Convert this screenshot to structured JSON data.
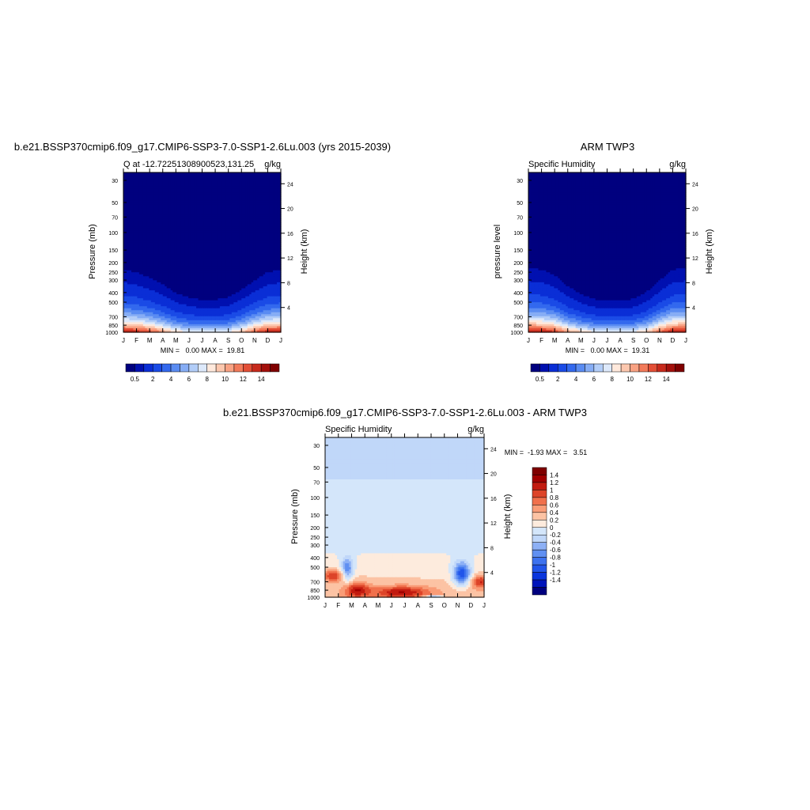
{
  "chart_data": [
    {
      "type": "heatmap",
      "title": "b.e21.BSSP370cmip6.f09_g17.CMIP6-SSP3-7.0-SSP1-2.6Lu.003 (yrs 2015-2039)",
      "left_string": "Q at -12.72251308900523,131.25",
      "right_string": "g/kg",
      "xlabel": "",
      "ylabel": "Pressure (mb)",
      "y2label": "Height (km)",
      "months": [
        "J",
        "F",
        "M",
        "A",
        "M",
        "J",
        "J",
        "A",
        "S",
        "O",
        "N",
        "D",
        "J"
      ],
      "pressure_ticks": [
        "30",
        "50",
        "70",
        "100",
        "150",
        "200",
        "250",
        "300",
        "400",
        "500",
        "700",
        "850",
        "1000"
      ],
      "height_ticks": [
        "4",
        "8",
        "12",
        "16",
        "20",
        "24"
      ],
      "minmax": "MIN =   0.00 MAX =  19.81",
      "stats": {
        "min": 0.0,
        "max": 19.81
      },
      "colorbar_labels": [
        "0.5",
        "2",
        "4",
        "6",
        "8",
        "10",
        "12",
        "14"
      ],
      "colorbar_levels": [
        0.5,
        1,
        2,
        3,
        4,
        5,
        6,
        7,
        8,
        9,
        10,
        11,
        12,
        13,
        14
      ],
      "surface_q": [
        14.5,
        14.0,
        13.0,
        11.0,
        9.0,
        8.2,
        7.8,
        7.8,
        8.3,
        10.0,
        12.5,
        14.2,
        14.5
      ],
      "scale_height_km": [
        3.0,
        2.9,
        2.7,
        2.5,
        2.2,
        2.0,
        1.9,
        1.9,
        2.0,
        2.3,
        2.6,
        2.9,
        3.0
      ]
    },
    {
      "type": "heatmap",
      "title": "ARM TWP3",
      "left_string": "Specific Humidity",
      "right_string": "g/kg",
      "ylabel": "pressure level",
      "y2label": "Height (km)",
      "months": [
        "J",
        "F",
        "M",
        "A",
        "M",
        "J",
        "J",
        "A",
        "S",
        "O",
        "N",
        "D",
        "J"
      ],
      "pressure_ticks": [
        "30",
        "50",
        "70",
        "100",
        "150",
        "200",
        "250",
        "300",
        "400",
        "500",
        "700",
        "850",
        "1000"
      ],
      "height_ticks": [
        "4",
        "8",
        "12",
        "16",
        "20",
        "24"
      ],
      "minmax": "MIN =   0.00 MAX =  19.31",
      "stats": {
        "min": 0.0,
        "max": 19.31
      },
      "colorbar_labels": [
        "0.5",
        "2",
        "4",
        "6",
        "8",
        "10",
        "12",
        "14"
      ],
      "colorbar_levels": [
        0.5,
        1,
        2,
        3,
        4,
        5,
        6,
        7,
        8,
        9,
        10,
        11,
        12,
        13,
        14
      ],
      "surface_q": [
        14.5,
        14.5,
        13.5,
        11.0,
        9.5,
        8.5,
        8.2,
        8.2,
        8.5,
        9.5,
        12.5,
        14.5,
        14.5
      ],
      "scale_height_km": [
        3.1,
        3.0,
        2.8,
        2.4,
        2.1,
        1.9,
        1.8,
        1.8,
        1.9,
        2.2,
        2.6,
        3.0,
        3.1
      ]
    },
    {
      "type": "heatmap",
      "title": "b.e21.BSSP370cmip6.f09_g17.CMIP6-SSP3-7.0-SSP1-2.6Lu.003 - ARM TWP3",
      "left_string": "Specific Humidity",
      "right_string": "g/kg",
      "ylabel": "Pressure (mb)",
      "y2label": "Height (km)",
      "months": [
        "J",
        "F",
        "M",
        "A",
        "M",
        "J",
        "J",
        "A",
        "S",
        "O",
        "N",
        "D",
        "J"
      ],
      "pressure_ticks": [
        "30",
        "50",
        "70",
        "100",
        "150",
        "200",
        "250",
        "300",
        "400",
        "500",
        "700",
        "850",
        "1000"
      ],
      "height_ticks": [
        "4",
        "8",
        "12",
        "16",
        "20",
        "24"
      ],
      "minmax": "MIN =  -1.93 MAX =   3.51",
      "stats": {
        "min": -1.93,
        "max": 3.51
      },
      "colorbar_labels": [
        "1.4",
        "1.2",
        "1",
        "0.8",
        "0.6",
        "0.4",
        "0.2",
        "0",
        "-0.2",
        "-0.4",
        "-0.6",
        "-0.8",
        "-1",
        "-1.2",
        "-1.4"
      ],
      "colorbar_levels": [
        -1.4,
        -1.2,
        -1.0,
        -0.8,
        -0.6,
        -0.4,
        -0.2,
        0,
        0.2,
        0.4,
        0.6,
        0.8,
        1.0,
        1.2,
        1.4
      ]
    }
  ],
  "colors": {
    "q_palette": [
      "#00007f",
      "#0010b0",
      "#0a2ed6",
      "#1a4be6",
      "#3369ee",
      "#5a8cf2",
      "#86adf5",
      "#b2cdf8",
      "#dde9fb",
      "#ffe9dc",
      "#fcc7ae",
      "#f9a283",
      "#f27a5a",
      "#e34f36",
      "#c72a1c",
      "#a4100c",
      "#7f0000"
    ],
    "diff_palette": [
      "#00007f",
      "#0014bb",
      "#0a36dd",
      "#2155ea",
      "#3d72ef",
      "#6090f2",
      "#8db0f5",
      "#c0d7f9",
      "#d4e6fa",
      "#fdebdd",
      "#fcc3a4",
      "#f99c77",
      "#f0704c",
      "#dd4429",
      "#c21b10",
      "#a10000",
      "#7f0000"
    ]
  }
}
